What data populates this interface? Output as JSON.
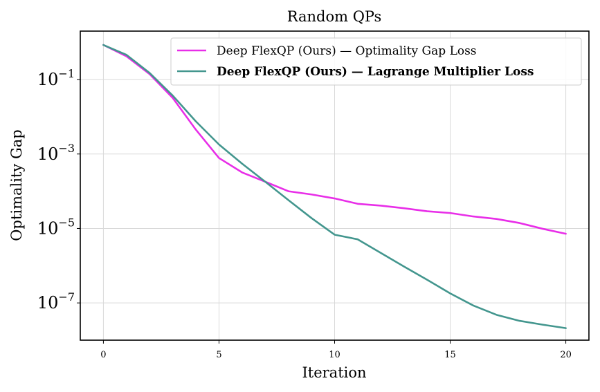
{
  "chart_data": {
    "type": "line",
    "title": "Random QPs",
    "xlabel": "Iteration",
    "ylabel": "Optimality Gap",
    "yscale": "log",
    "xlim": [
      -1,
      21
    ],
    "ylim": [
      1e-08,
      2
    ],
    "grid": true,
    "legend_position": "top-right",
    "x_ticks": [
      {
        "value": 0,
        "label": "0"
      },
      {
        "value": 5,
        "label": "5"
      },
      {
        "value": 10,
        "label": "10"
      },
      {
        "value": 15,
        "label": "15"
      },
      {
        "value": 20,
        "label": "20"
      }
    ],
    "y_ticks": [
      {
        "value": 0.1,
        "base": "10",
        "exp": "−1"
      },
      {
        "value": 0.001,
        "base": "10",
        "exp": "−3"
      },
      {
        "value": 1e-05,
        "base": "10",
        "exp": "−5"
      },
      {
        "value": 1e-07,
        "base": "10",
        "exp": "−7"
      }
    ],
    "x": [
      0,
      1,
      2,
      3,
      4,
      5,
      6,
      7,
      8,
      9,
      10,
      11,
      12,
      13,
      14,
      15,
      16,
      17,
      18,
      19,
      20
    ],
    "series": [
      {
        "name": "Deep FlexQP (Ours) — Optimality Gap Loss",
        "color": "#e82ee8",
        "bold": false,
        "values": [
          0.85,
          0.42,
          0.14,
          0.032,
          0.0045,
          0.00078,
          0.00032,
          0.00018,
          0.0001,
          8.2e-05,
          6.4e-05,
          4.6e-05,
          4.1e-05,
          3.5e-05,
          2.9e-05,
          2.6e-05,
          2.1e-05,
          1.8e-05,
          1.4e-05,
          9.8e-06,
          7.2e-06
        ]
      },
      {
        "name": "Deep FlexQP (Ours) — Lagrange Multiplier Loss",
        "color": "#43968e",
        "bold": true,
        "values": [
          0.85,
          0.46,
          0.15,
          0.037,
          0.0075,
          0.0018,
          0.00055,
          0.00018,
          5.8e-05,
          1.9e-05,
          6.8e-06,
          5.1e-06,
          2.2e-06,
          9.5e-07,
          4.2e-07,
          1.8e-07,
          8.5e-08,
          4.8e-08,
          3.3e-08,
          2.6e-08,
          2.1e-08
        ]
      }
    ]
  }
}
